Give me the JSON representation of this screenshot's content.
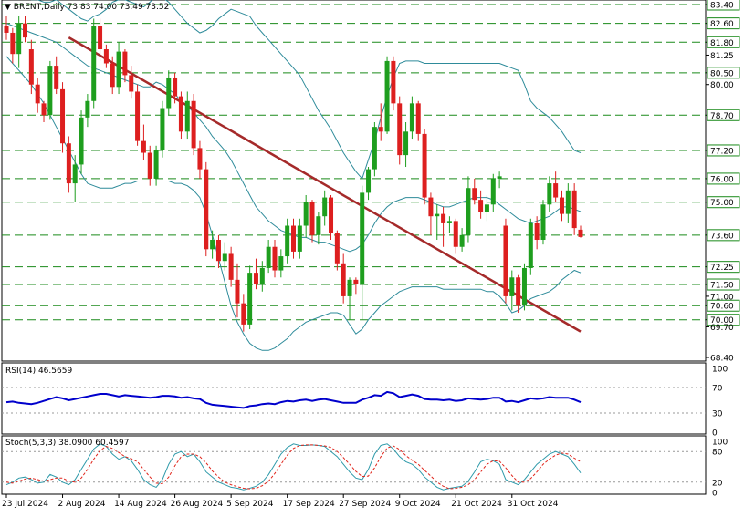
{
  "header": {
    "symbol": "BRENT,Daily",
    "ohlc": "73.83 74.00 73.49 73.52"
  },
  "rsi": {
    "label": "RSI(14) 46.5659",
    "levels": [
      "100",
      "70",
      "30",
      "0"
    ]
  },
  "stoch": {
    "label": "Stoch(5,3,3) 38.0900 60.4597",
    "levels": [
      "100",
      "80",
      "20",
      "0"
    ]
  },
  "colors": {
    "bull": "#1e9e1e",
    "bear": "#dd1f1f",
    "trendline": "#a52a2a",
    "bands": "#2e8b9a",
    "level": "#1a8a1a",
    "rsi": "#0000cc",
    "stoch_main": "#2e9aaa",
    "stoch_signal": "#e0251b"
  },
  "chart_data": {
    "type": "candlestick",
    "ylim": [
      68.4,
      83.4
    ],
    "y_tick_labels": [
      "83.40",
      "82.60",
      "81.80",
      "81.25",
      "80.50",
      "80.00",
      "78.70",
      "77.20",
      "76.00",
      "75.00",
      "73.60",
      "72.25",
      "71.50",
      "71.00",
      "70.60",
      "70.00",
      "69.70",
      "68.40"
    ],
    "horizontal_levels": [
      83.4,
      82.6,
      81.8,
      80.5,
      78.7,
      77.2,
      76.0,
      75.0,
      73.6,
      72.25,
      71.5,
      70.6,
      70.0
    ],
    "x_tick_labels": [
      "23 Jul 2024",
      "2 Aug 2024",
      "14 Aug 2024",
      "26 Aug 2024",
      "5 Sep 2024",
      "17 Sep 2024",
      "27 Sep 2024",
      "9 Oct 2024",
      "21 Oct 2024",
      "31 Oct 2024"
    ],
    "candles": [
      [
        82.5,
        82.9,
        81.9,
        82.2
      ],
      [
        82.2,
        82.4,
        80.9,
        81.3
      ],
      [
        81.3,
        82.9,
        80.7,
        82.6
      ],
      [
        82.6,
        82.9,
        81.8,
        82.0
      ],
      [
        81.5,
        81.9,
        79.6,
        80.0
      ],
      [
        80.0,
        80.3,
        78.8,
        79.2
      ],
      [
        79.2,
        79.3,
        78.4,
        78.7
      ],
      [
        78.7,
        81.0,
        78.5,
        80.8
      ],
      [
        80.8,
        81.2,
        79.6,
        79.8
      ],
      [
        79.8,
        80.1,
        77.1,
        77.5
      ],
      [
        77.5,
        77.8,
        75.4,
        75.8
      ],
      [
        75.8,
        77.0,
        75.0,
        76.6
      ],
      [
        76.6,
        78.9,
        76.2,
        78.6
      ],
      [
        78.6,
        79.6,
        78.2,
        79.3
      ],
      [
        79.3,
        82.8,
        79.0,
        82.5
      ],
      [
        82.5,
        82.8,
        81.0,
        81.5
      ],
      [
        81.5,
        81.7,
        80.7,
        80.9
      ],
      [
        80.9,
        81.2,
        79.6,
        79.9
      ],
      [
        79.9,
        81.8,
        79.6,
        81.4
      ],
      [
        81.4,
        81.5,
        80.1,
        80.4
      ],
      [
        80.4,
        80.8,
        79.4,
        79.7
      ],
      [
        79.7,
        80.0,
        77.4,
        77.6
      ],
      [
        77.6,
        78.3,
        76.8,
        77.1
      ],
      [
        77.1,
        77.4,
        75.7,
        76.0
      ],
      [
        76.0,
        77.4,
        75.7,
        77.2
      ],
      [
        77.2,
        79.3,
        76.9,
        79.0
      ],
      [
        79.0,
        80.6,
        78.7,
        80.3
      ],
      [
        80.3,
        80.5,
        79.2,
        79.5
      ],
      [
        79.5,
        79.7,
        77.7,
        78.0
      ],
      [
        78.0,
        79.7,
        77.7,
        79.3
      ],
      [
        79.3,
        79.6,
        77.0,
        77.3
      ],
      [
        77.3,
        77.6,
        76.0,
        76.4
      ],
      [
        76.4,
        76.7,
        72.7,
        73.0
      ],
      [
        73.0,
        73.8,
        72.6,
        73.4
      ],
      [
        73.4,
        73.6,
        72.2,
        72.5
      ],
      [
        72.5,
        73.3,
        72.1,
        72.8
      ],
      [
        72.8,
        73.1,
        71.4,
        71.7
      ],
      [
        71.7,
        72.4,
        70.1,
        70.7
      ],
      [
        70.7,
        71.1,
        69.5,
        69.8
      ],
      [
        69.8,
        72.3,
        69.6,
        72.0
      ],
      [
        72.0,
        72.6,
        71.3,
        71.5
      ],
      [
        71.5,
        72.5,
        71.2,
        72.2
      ],
      [
        72.2,
        73.4,
        72.0,
        73.1
      ],
      [
        73.1,
        73.4,
        71.8,
        72.1
      ],
      [
        72.1,
        73.0,
        71.8,
        72.7
      ],
      [
        72.7,
        74.3,
        72.4,
        74.0
      ],
      [
        74.0,
        74.3,
        72.6,
        72.9
      ],
      [
        72.9,
        74.3,
        72.6,
        74.0
      ],
      [
        74.0,
        75.3,
        73.5,
        75.0
      ],
      [
        75.0,
        75.1,
        73.3,
        73.6
      ],
      [
        73.6,
        74.6,
        73.2,
        74.4
      ],
      [
        74.4,
        75.5,
        74.0,
        75.2
      ],
      [
        75.2,
        75.3,
        73.4,
        73.7
      ],
      [
        73.7,
        73.8,
        72.1,
        72.4
      ],
      [
        72.4,
        72.8,
        70.7,
        71.0
      ],
      [
        71.0,
        71.8,
        70.0,
        71.7
      ],
      [
        71.7,
        71.8,
        71.1,
        71.5
      ],
      [
        71.5,
        75.7,
        70.0,
        75.4
      ],
      [
        75.4,
        76.5,
        75.1,
        76.4
      ],
      [
        76.4,
        78.4,
        76.1,
        78.2
      ],
      [
        78.2,
        79.2,
        77.6,
        78.0
      ],
      [
        78.0,
        81.2,
        77.9,
        81.0
      ],
      [
        81.0,
        81.2,
        78.9,
        79.2
      ],
      [
        79.2,
        79.5,
        76.6,
        77.0
      ],
      [
        77.0,
        78.4,
        76.5,
        78.0
      ],
      [
        78.0,
        79.5,
        77.7,
        79.2
      ],
      [
        79.2,
        79.3,
        77.6,
        77.9
      ],
      [
        77.9,
        78.1,
        74.9,
        75.2
      ],
      [
        75.2,
        75.4,
        73.6,
        74.4
      ],
      [
        74.4,
        74.9,
        73.4,
        74.5
      ],
      [
        74.5,
        74.8,
        73.1,
        74.1
      ],
      [
        74.1,
        74.4,
        73.7,
        74.2
      ],
      [
        74.2,
        74.3,
        72.8,
        73.1
      ],
      [
        73.1,
        73.9,
        72.9,
        73.6
      ],
      [
        73.6,
        76.1,
        73.3,
        75.6
      ],
      [
        75.6,
        76.0,
        74.9,
        75.1
      ],
      [
        75.1,
        75.5,
        74.3,
        74.6
      ],
      [
        74.6,
        75.3,
        74.2,
        74.9
      ],
      [
        74.9,
        76.2,
        74.6,
        76.0
      ],
      [
        76.0,
        76.3,
        75.6,
        76.1
      ],
      [
        74.0,
        74.3,
        70.7,
        71.0
      ],
      [
        71.0,
        72.1,
        70.4,
        71.8
      ],
      [
        71.8,
        71.9,
        70.3,
        70.6
      ],
      [
        70.6,
        72.4,
        70.4,
        72.2
      ],
      [
        72.2,
        74.3,
        71.9,
        74.1
      ],
      [
        74.1,
        74.4,
        73.0,
        73.4
      ],
      [
        73.4,
        75.1,
        73.2,
        74.9
      ],
      [
        74.9,
        76.1,
        74.6,
        75.8
      ],
      [
        75.8,
        76.3,
        75.0,
        75.2
      ],
      [
        75.2,
        75.5,
        74.2,
        74.5
      ],
      [
        74.5,
        75.8,
        74.1,
        75.5
      ],
      [
        75.5,
        75.8,
        73.6,
        73.9
      ],
      [
        73.83,
        74.0,
        73.49,
        73.52
      ]
    ],
    "upper_band": [
      84.0,
      83.9,
      83.8,
      83.7,
      83.6,
      83.6,
      83.5,
      83.5,
      83.6,
      83.4,
      83.2,
      83.0,
      82.8,
      82.7,
      82.9,
      83.0,
      83.2,
      83.5,
      83.6,
      83.6,
      83.5,
      83.4,
      83.3,
      83.5,
      83.8,
      83.7,
      83.5,
      83.2,
      82.9,
      82.6,
      82.4,
      82.2,
      82.3,
      82.5,
      82.8,
      83.0,
      83.2,
      83.1,
      83.0,
      82.9,
      82.5,
      82.2,
      81.9,
      81.6,
      81.3,
      81.0,
      80.7,
      80.4,
      79.9,
      79.4,
      78.9,
      78.5,
      78.1,
      77.6,
      77.1,
      76.7,
      76.3,
      76.0,
      76.8,
      77.6,
      78.6,
      79.5,
      80.3,
      80.9,
      81.0,
      81.0,
      81.0,
      80.9,
      80.9,
      80.9,
      80.9,
      80.9,
      80.9,
      80.9,
      80.9,
      80.9,
      80.9,
      80.9,
      80.9,
      80.9,
      80.8,
      80.7,
      80.6,
      80.0,
      79.3,
      79.0,
      78.8,
      78.6,
      78.3,
      78.0,
      77.6,
      77.2,
      77.1
    ],
    "middle_band": [
      82.6,
      82.5,
      82.4,
      82.3,
      82.2,
      82.1,
      82.0,
      81.9,
      81.8,
      81.6,
      81.4,
      81.2,
      81.0,
      80.8,
      80.7,
      80.6,
      80.5,
      80.4,
      80.3,
      80.2,
      80.1,
      80.0,
      79.9,
      79.9,
      80.1,
      80.0,
      79.8,
      79.6,
      79.3,
      79.1,
      78.8,
      78.5,
      78.2,
      77.8,
      77.5,
      77.2,
      76.8,
      76.3,
      75.8,
      75.3,
      74.8,
      74.5,
      74.2,
      74.0,
      73.8,
      73.7,
      73.6,
      73.5,
      73.5,
      73.4,
      73.3,
      73.3,
      73.2,
      73.1,
      73.0,
      72.9,
      73.0,
      73.2,
      73.6,
      74.1,
      74.5,
      74.8,
      75.0,
      75.1,
      75.2,
      75.2,
      75.2,
      75.1,
      75.0,
      74.9,
      74.8,
      74.8,
      74.9,
      75.0,
      75.1,
      75.2,
      75.2,
      75.2,
      75.1,
      74.9,
      74.7,
      74.5,
      74.3,
      74.2,
      74.1,
      74.2,
      74.3,
      74.4,
      74.6,
      74.8,
      74.8,
      74.7,
      74.6
    ],
    "lower_band": [
      81.2,
      80.9,
      80.6,
      80.3,
      80.0,
      79.6,
      79.2,
      78.7,
      78.2,
      77.7,
      77.2,
      76.7,
      76.2,
      75.8,
      75.7,
      75.6,
      75.6,
      75.6,
      75.7,
      75.8,
      75.8,
      75.9,
      75.9,
      75.9,
      75.9,
      75.9,
      75.9,
      75.8,
      75.8,
      75.7,
      75.5,
      75.2,
      74.5,
      73.6,
      72.6,
      71.6,
      70.6,
      69.9,
      69.4,
      69.0,
      68.8,
      68.7,
      68.7,
      68.8,
      69.0,
      69.2,
      69.5,
      69.7,
      69.9,
      70.0,
      70.1,
      70.2,
      70.3,
      70.3,
      70.2,
      69.8,
      69.4,
      69.6,
      70.0,
      70.3,
      70.6,
      70.8,
      71.0,
      71.2,
      71.3,
      71.4,
      71.4,
      71.4,
      71.4,
      71.4,
      71.3,
      71.3,
      71.3,
      71.3,
      71.3,
      71.3,
      71.3,
      71.2,
      71.2,
      71.0,
      70.7,
      70.3,
      70.4,
      70.6,
      70.9,
      71.0,
      71.1,
      71.2,
      71.4,
      71.7,
      71.9,
      72.1,
      72.0
    ],
    "trendline": {
      "from": {
        "index": 10,
        "value": 82.0
      },
      "to": {
        "index": 92,
        "value": 69.5
      }
    },
    "rsi_series": [
      47,
      48,
      46,
      45,
      44,
      46,
      49,
      52,
      55,
      53,
      50,
      52,
      54,
      56,
      58,
      60,
      60,
      58,
      56,
      58,
      57,
      56,
      55,
      54,
      55,
      57,
      57,
      56,
      54,
      55,
      53,
      52,
      46,
      43,
      42,
      41,
      40,
      39,
      38,
      41,
      42,
      44,
      45,
      44,
      47,
      49,
      48,
      50,
      51,
      49,
      51,
      52,
      50,
      48,
      46,
      46,
      46,
      51,
      54,
      58,
      57,
      63,
      61,
      55,
      57,
      59,
      57,
      52,
      51,
      51,
      50,
      51,
      49,
      50,
      53,
      52,
      51,
      52,
      54,
      54,
      48,
      49,
      47,
      50,
      53,
      52,
      53,
      55,
      54,
      54,
      54,
      51,
      47
    ],
    "stoch_main": [
      15,
      20,
      28,
      30,
      25,
      18,
      20,
      35,
      30,
      20,
      15,
      25,
      45,
      65,
      85,
      95,
      90,
      75,
      65,
      70,
      62,
      45,
      25,
      15,
      10,
      25,
      55,
      75,
      80,
      70,
      75,
      60,
      40,
      30,
      20,
      15,
      10,
      8,
      5,
      8,
      12,
      20,
      35,
      55,
      75,
      88,
      95,
      92,
      92,
      93,
      92,
      90,
      80,
      70,
      55,
      40,
      28,
      25,
      45,
      75,
      92,
      95,
      85,
      70,
      60,
      55,
      45,
      30,
      20,
      10,
      5,
      8,
      10,
      12,
      22,
      40,
      60,
      65,
      62,
      55,
      25,
      20,
      15,
      25,
      40,
      55,
      65,
      75,
      80,
      75,
      70,
      55,
      38
    ],
    "stoch_signal": [
      20,
      18,
      22,
      26,
      28,
      25,
      22,
      25,
      28,
      28,
      22,
      20,
      28,
      45,
      65,
      82,
      90,
      86,
      78,
      70,
      66,
      60,
      45,
      30,
      18,
      17,
      30,
      52,
      70,
      75,
      75,
      70,
      58,
      42,
      30,
      20,
      15,
      11,
      8,
      7,
      8,
      13,
      22,
      37,
      55,
      73,
      86,
      92,
      93,
      93,
      92,
      91,
      88,
      80,
      68,
      55,
      41,
      31,
      32,
      48,
      70,
      87,
      91,
      84,
      72,
      63,
      55,
      43,
      32,
      20,
      12,
      7,
      8,
      10,
      15,
      25,
      40,
      55,
      62,
      61,
      48,
      33,
      20,
      20,
      27,
      40,
      55,
      65,
      73,
      77,
      75,
      67,
      60
    ]
  }
}
